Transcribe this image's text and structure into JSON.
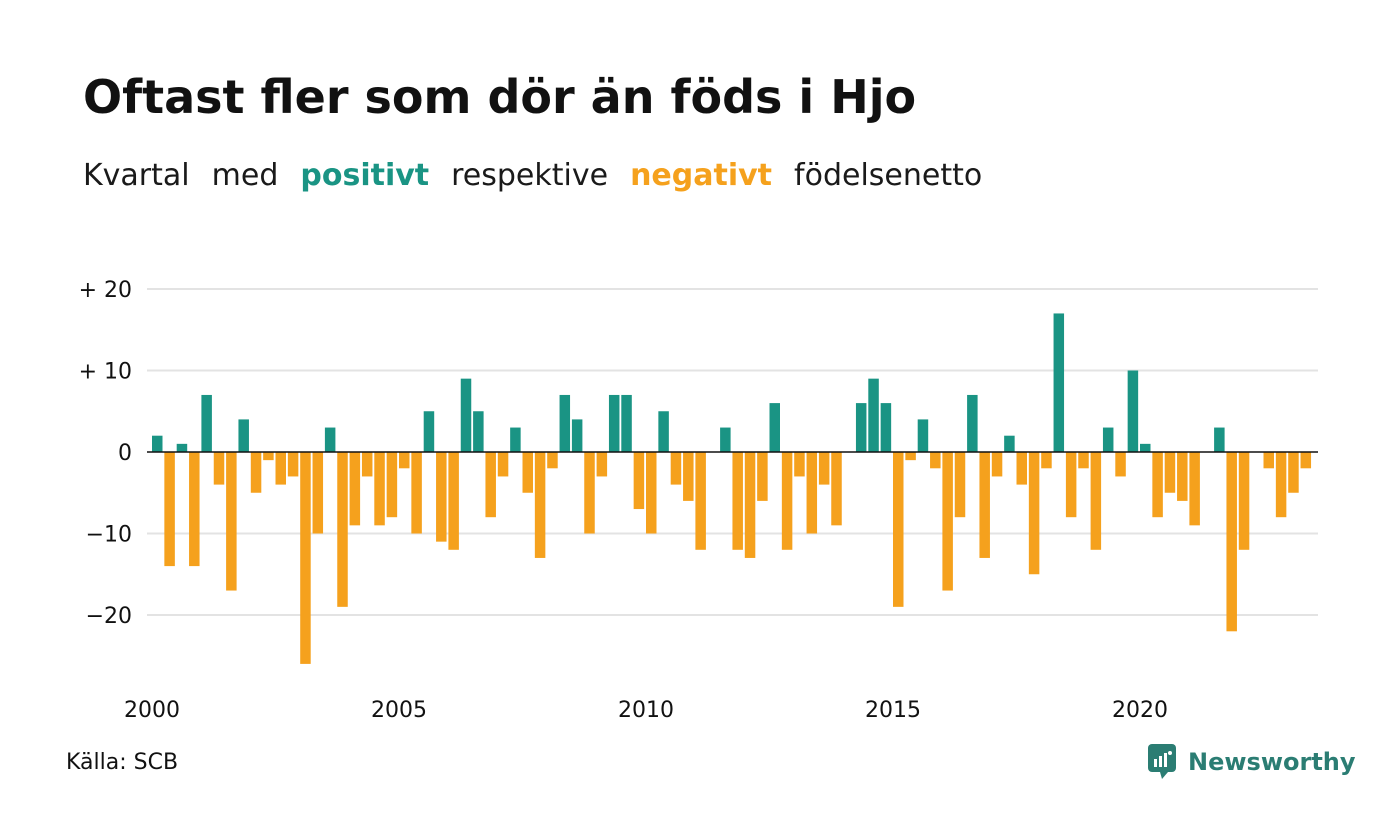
{
  "title": "Oftast fler som dör än föds i Hjo",
  "subtitle": {
    "part1": "Kvartal",
    "part2": "med",
    "positive": "positivt",
    "part3": "respektive",
    "negative": "negativt",
    "part4": "födelsenetto"
  },
  "source": "Källa: SCB",
  "brand": "Newsworthy",
  "colors": {
    "positive": "#1a9484",
    "negative": "#f5a11d",
    "grid": "#e3e3e3",
    "zero": "#111111",
    "brand": "#2b7d73"
  },
  "chart_data": {
    "type": "bar",
    "start": "2000 Q1",
    "frequency": "quarterly",
    "values": [
      2,
      -14,
      1,
      -14,
      7,
      -4,
      -17,
      4,
      -5,
      -1,
      -4,
      -3,
      -26,
      -10,
      3,
      -19,
      -9,
      -3,
      -9,
      -8,
      -2,
      -10,
      5,
      -11,
      -12,
      9,
      5,
      -8,
      -3,
      3,
      -5,
      -13,
      -2,
      7,
      4,
      -10,
      -3,
      7,
      7,
      -7,
      -10,
      5,
      -4,
      -6,
      -12,
      0,
      3,
      -12,
      -13,
      -6,
      6,
      -12,
      -3,
      -10,
      -4,
      -9,
      0,
      6,
      9,
      6,
      -19,
      -1,
      4,
      -2,
      -17,
      -8,
      7,
      -13,
      -3,
      2,
      -4,
      -15,
      -2,
      17,
      -8,
      -2,
      -12,
      3,
      -3,
      10,
      1,
      -8,
      -5,
      -6,
      -9,
      0,
      3,
      -22,
      -12,
      0,
      -2,
      -8,
      -5,
      -2
    ],
    "y_ticks": [
      {
        "value": 20,
        "label": "+ 20"
      },
      {
        "value": 10,
        "label": "+ 10"
      },
      {
        "value": 0,
        "label": "0"
      },
      {
        "value": -10,
        "label": "−10"
      },
      {
        "value": -20,
        "label": "−20"
      }
    ],
    "x_ticks": [
      {
        "year": 2000,
        "label": "2000"
      },
      {
        "year": 2005,
        "label": "2005"
      },
      {
        "year": 2010,
        "label": "2010"
      },
      {
        "year": 2015,
        "label": "2015"
      },
      {
        "year": 2020,
        "label": "2020"
      }
    ],
    "ylim": [
      -27,
      21
    ],
    "grid": true
  }
}
